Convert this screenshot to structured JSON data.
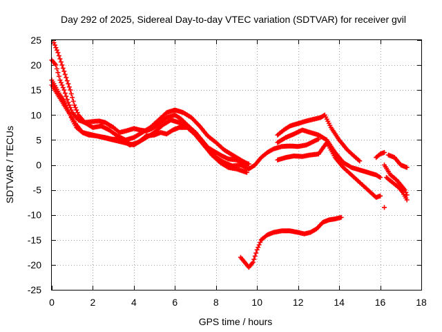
{
  "chart_data": {
    "type": "scatter",
    "title": "Day 292 of 2025, Sidereal Day-to-day VTEC variation (SDTVAR) for receiver gvil",
    "xlabel": "GPS time / hours",
    "ylabel": "SDTVAR / TECUs",
    "xlim": [
      0,
      18
    ],
    "ylim": [
      -25,
      25
    ],
    "x_ticks": [
      0,
      2,
      4,
      6,
      8,
      10,
      12,
      14,
      16,
      18
    ],
    "y_ticks": [
      -25,
      -20,
      -15,
      -10,
      -5,
      0,
      5,
      10,
      15,
      20,
      25
    ],
    "grid": true,
    "marker": "+",
    "color": "#ff0000",
    "series": [
      {
        "name": "trace-a",
        "points": [
          [
            0.0,
            21.0
          ],
          [
            0.2,
            20.0
          ],
          [
            0.4,
            17.0
          ],
          [
            0.6,
            15.0
          ],
          [
            0.8,
            12.5
          ],
          [
            1.0,
            10.5
          ],
          [
            1.3,
            9.0
          ],
          [
            1.6,
            8.5
          ],
          [
            2.0,
            8.7
          ],
          [
            2.3,
            8.8
          ],
          [
            2.6,
            8.5
          ],
          [
            3.0,
            7.5
          ],
          [
            3.3,
            6.5
          ],
          [
            3.6,
            6.8
          ],
          [
            4.0,
            7.3
          ],
          [
            4.3,
            7.0
          ],
          [
            4.6,
            6.8
          ],
          [
            5.0,
            7.5
          ],
          [
            5.3,
            8.5
          ],
          [
            5.6,
            9.5
          ],
          [
            6.0,
            10.0
          ],
          [
            6.3,
            9.2
          ],
          [
            6.6,
            8.0
          ],
          [
            7.0,
            6.5
          ],
          [
            7.3,
            5.0
          ],
          [
            7.6,
            3.5
          ],
          [
            8.0,
            2.5
          ],
          [
            8.3,
            1.8
          ],
          [
            8.6,
            1.2
          ],
          [
            9.0,
            1.0
          ],
          [
            9.3,
            0.5
          ],
          [
            9.6,
            0.2
          ]
        ]
      },
      {
        "name": "trace-b",
        "points": [
          [
            0.1,
            24.5
          ],
          [
            0.3,
            22.5
          ],
          [
            0.5,
            20.0
          ],
          [
            0.7,
            17.5
          ],
          [
            0.9,
            15.0
          ],
          [
            1.1,
            12.0
          ],
          [
            1.3,
            10.0
          ],
          [
            1.6,
            8.5
          ],
          [
            2.0,
            7.5
          ],
          [
            2.4,
            7.8
          ],
          [
            2.8,
            7.0
          ],
          [
            3.2,
            5.8
          ],
          [
            3.6,
            5.0
          ],
          [
            4.0,
            5.5
          ],
          [
            4.4,
            6.5
          ],
          [
            4.8,
            7.5
          ],
          [
            5.2,
            9.0
          ],
          [
            5.6,
            10.5
          ],
          [
            6.0,
            11.0
          ],
          [
            6.4,
            10.5
          ],
          [
            6.8,
            9.5
          ],
          [
            7.2,
            7.8
          ],
          [
            7.6,
            5.8
          ],
          [
            8.0,
            4.5
          ],
          [
            8.4,
            3.0
          ],
          [
            8.8,
            2.0
          ],
          [
            9.2,
            1.0
          ],
          [
            9.5,
            0.3
          ]
        ]
      },
      {
        "name": "trace-c",
        "points": [
          [
            0.0,
            17.0
          ],
          [
            0.2,
            15.5
          ],
          [
            0.4,
            14.0
          ],
          [
            0.6,
            12.8
          ],
          [
            0.8,
            11.0
          ],
          [
            1.0,
            9.0
          ],
          [
            1.2,
            7.5
          ],
          [
            1.5,
            6.5
          ],
          [
            1.8,
            6.0
          ],
          [
            2.2,
            5.8
          ],
          [
            2.6,
            5.5
          ],
          [
            2.9,
            5.2
          ],
          [
            3.4,
            5.0
          ],
          [
            3.8,
            4.0
          ],
          [
            4.2,
            4.5
          ],
          [
            4.6,
            5.5
          ],
          [
            5.0,
            6.5
          ],
          [
            5.4,
            8.0
          ],
          [
            5.8,
            9.0
          ],
          [
            6.2,
            8.5
          ],
          [
            6.6,
            7.5
          ],
          [
            7.0,
            6.0
          ],
          [
            7.4,
            4.0
          ],
          [
            7.8,
            2.0
          ],
          [
            8.2,
            0.5
          ],
          [
            8.6,
            -0.5
          ],
          [
            9.0,
            -0.8
          ],
          [
            9.3,
            -1.2
          ],
          [
            9.5,
            -1.5
          ]
        ]
      },
      {
        "name": "trace-d",
        "points": [
          [
            0.0,
            16.0
          ],
          [
            0.3,
            14.0
          ],
          [
            0.6,
            12.0
          ],
          [
            0.9,
            10.0
          ],
          [
            1.2,
            8.0
          ],
          [
            1.5,
            6.5
          ],
          [
            4.0,
            4.0
          ],
          [
            4.3,
            4.8
          ],
          [
            4.6,
            5.8
          ],
          [
            5.0,
            6.0
          ],
          [
            5.3,
            6.5
          ],
          [
            5.6,
            6.2
          ],
          [
            5.9,
            7.0
          ],
          [
            6.2,
            7.5
          ],
          [
            6.6,
            7.5
          ],
          [
            7.0,
            6.5
          ],
          [
            7.3,
            5.0
          ],
          [
            7.6,
            3.5
          ],
          [
            8.0,
            1.5
          ],
          [
            8.4,
            0.5
          ],
          [
            8.8,
            -0.2
          ],
          [
            9.2,
            0.0
          ],
          [
            9.6,
            -0.8
          ],
          [
            9.9,
            0.0
          ],
          [
            10.2,
            1.5
          ],
          [
            10.5,
            2.5
          ],
          [
            10.8,
            3.2
          ],
          [
            11.2,
            3.7
          ],
          [
            11.6,
            3.8
          ],
          [
            12.0,
            3.7
          ],
          [
            12.4,
            4.0
          ],
          [
            12.8,
            4.8
          ],
          [
            13.0,
            5.2
          ]
        ]
      },
      {
        "name": "trace-e",
        "points": [
          [
            11.0,
            6.0
          ],
          [
            11.3,
            7.0
          ],
          [
            11.6,
            7.8
          ],
          [
            12.0,
            8.3
          ],
          [
            12.4,
            8.8
          ],
          [
            12.8,
            9.2
          ],
          [
            13.1,
            9.5
          ],
          [
            13.3,
            10.0
          ],
          [
            13.6,
            7.5
          ],
          [
            14.0,
            5.0
          ],
          [
            14.4,
            3.0
          ],
          [
            14.8,
            1.5
          ],
          [
            15.0,
            0.8
          ]
        ]
      },
      {
        "name": "trace-f",
        "points": [
          [
            11.0,
            4.5
          ],
          [
            11.4,
            5.5
          ],
          [
            11.8,
            6.2
          ],
          [
            12.2,
            7.0
          ],
          [
            12.6,
            6.5
          ],
          [
            13.0,
            6.0
          ],
          [
            13.4,
            5.0
          ],
          [
            13.8,
            2.5
          ],
          [
            14.2,
            0.5
          ],
          [
            14.6,
            -0.5
          ],
          [
            15.0,
            -1.0
          ],
          [
            15.4,
            -1.5
          ],
          [
            15.8,
            -2.0
          ],
          [
            16.0,
            -2.5
          ]
        ]
      },
      {
        "name": "trace-g",
        "points": [
          [
            11.0,
            1.0
          ],
          [
            11.4,
            1.5
          ],
          [
            11.8,
            1.8
          ],
          [
            12.2,
            1.7
          ],
          [
            12.6,
            2.0
          ],
          [
            13.0,
            2.2
          ],
          [
            13.4,
            4.5
          ],
          [
            13.8,
            1.5
          ],
          [
            14.2,
            -0.5
          ],
          [
            14.6,
            -2.0
          ],
          [
            15.0,
            -3.5
          ],
          [
            15.4,
            -5.0
          ],
          [
            15.8,
            -6.5
          ],
          [
            16.0,
            -6.2
          ]
        ]
      },
      {
        "name": "trace-h",
        "points": [
          [
            15.8,
            1.5
          ],
          [
            16.0,
            2.2
          ],
          [
            16.2,
            2.5
          ]
        ]
      },
      {
        "name": "trace-i",
        "points": [
          [
            16.4,
            2.0
          ],
          [
            16.7,
            1.5
          ],
          [
            17.0,
            0.0
          ],
          [
            17.3,
            -0.5
          ]
        ]
      },
      {
        "name": "trace-j",
        "points": [
          [
            16.2,
            0.0
          ],
          [
            16.5,
            -2.0
          ],
          [
            16.8,
            -3.0
          ],
          [
            17.0,
            -4.0
          ],
          [
            17.2,
            -5.0
          ],
          [
            17.3,
            -6.0
          ]
        ]
      },
      {
        "name": "trace-k",
        "points": [
          [
            16.3,
            -2.5
          ],
          [
            16.6,
            -3.5
          ],
          [
            16.9,
            -4.5
          ],
          [
            17.1,
            -5.5
          ],
          [
            17.3,
            -7.0
          ]
        ]
      },
      {
        "name": "trace-l",
        "points": [
          [
            16.2,
            -8.5
          ]
        ]
      },
      {
        "name": "trace-m",
        "points": [
          [
            9.2,
            -18.5
          ],
          [
            9.4,
            -19.5
          ],
          [
            9.6,
            -20.5
          ],
          [
            9.8,
            -19.5
          ],
          [
            10.0,
            -17.0
          ],
          [
            10.2,
            -15.0
          ],
          [
            10.5,
            -14.0
          ],
          [
            10.8,
            -13.5
          ],
          [
            11.2,
            -13.2
          ],
          [
            11.6,
            -13.2
          ],
          [
            12.0,
            -13.5
          ],
          [
            12.3,
            -13.8
          ],
          [
            12.6,
            -13.5
          ],
          [
            12.9,
            -12.8
          ],
          [
            13.2,
            -11.5
          ],
          [
            13.5,
            -11.0
          ],
          [
            13.8,
            -10.8
          ],
          [
            14.1,
            -10.5
          ]
        ]
      }
    ]
  }
}
